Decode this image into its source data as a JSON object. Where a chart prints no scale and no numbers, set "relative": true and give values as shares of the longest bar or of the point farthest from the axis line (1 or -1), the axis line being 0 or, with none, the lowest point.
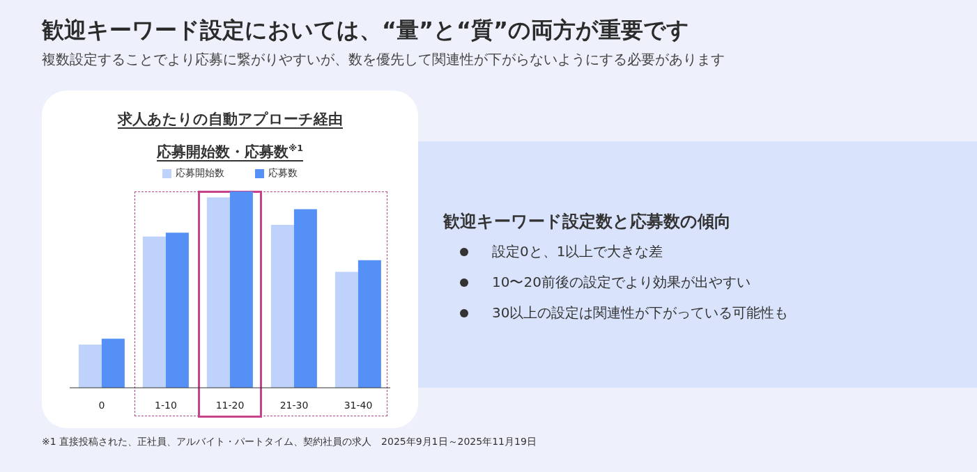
{
  "chart_data": {
    "type": "bar",
    "title": "歓迎キーワード設定においては、“量”と“質”の両方が重要です",
    "subtitle": "複数設定することでより応募に繋がりやすいが、数を優先して関連性が下がらないようにする必要があります",
    "relative": true,
    "categories": [
      "0",
      "1-10",
      "11-20",
      "21-30",
      "31-40"
    ],
    "series": [
      {
        "name": "応募開始数",
        "color": "#bfd2fb",
        "values": [
          0.22,
          0.77,
          0.97,
          0.83,
          0.59
        ]
      },
      {
        "name": "応募数",
        "color": "#5590f7",
        "values": [
          0.25,
          0.79,
          1,
          0.91,
          0.65
        ]
      }
    ],
    "legend": "top",
    "grid": false,
    "annotations": [
      "求人あたりの自動アプローチ経由",
      "応募開始数・応募数$^{※1}$",
      "歓迎キーワード設定数と応募数の傾向",
      "設定0と、1以上で大きな差",
      "10〜20前後の設定でより効果が出やすい",
      "30以上の設定は関連性が下がっている可能性も",
      "※1 直接投稿された、正社員、アルバイト・パートタイム、契約社員の求人　2025年9月1日～2025年11月19日"
    ]
  }
}
